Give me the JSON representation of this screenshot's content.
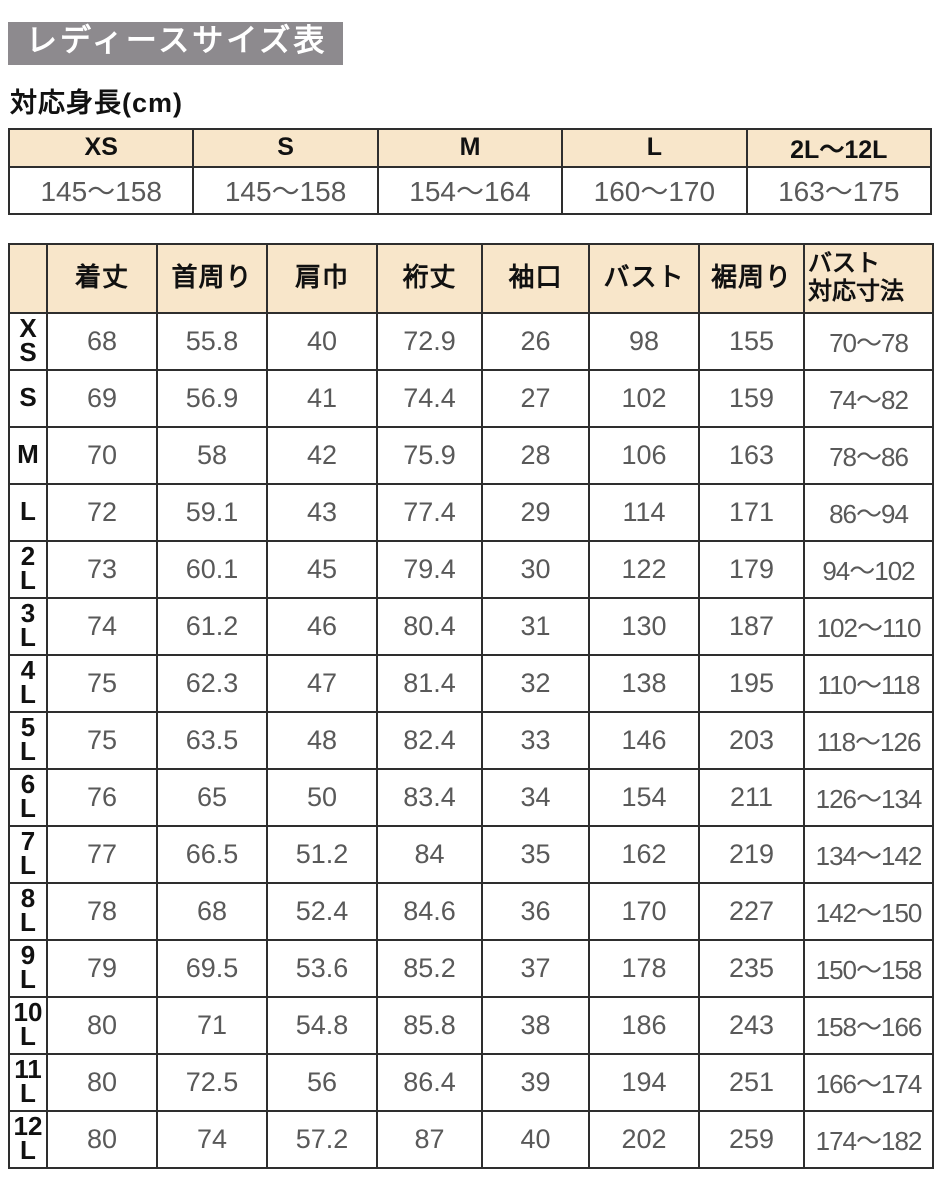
{
  "page_title": "レディースサイズ表",
  "height_section_label": "対応身長(cm)",
  "chart_data": [
    {
      "type": "table",
      "name": "height-range-table",
      "columns": [
        "XS",
        "S",
        "M",
        "L",
        "2L〜12L"
      ],
      "rows": [
        [
          "145〜158",
          "145〜158",
          "154〜164",
          "160〜170",
          "163〜175"
        ]
      ]
    },
    {
      "type": "table",
      "name": "measurements-table",
      "corner_label": "",
      "columns": [
        "着丈",
        "首周り",
        "肩巾",
        "裄丈",
        "袖口",
        "バスト",
        "裾周り",
        "バスト\n対応寸法"
      ],
      "row_headers": [
        "XS",
        "S",
        "M",
        "L",
        "2L",
        "3L",
        "4L",
        "5L",
        "6L",
        "7L",
        "8L",
        "9L",
        "10L",
        "11L",
        "12L"
      ],
      "rows": [
        [
          "68",
          "55.8",
          "40",
          "72.9",
          "26",
          "98",
          "155",
          "70〜78"
        ],
        [
          "69",
          "56.9",
          "41",
          "74.4",
          "27",
          "102",
          "159",
          "74〜82"
        ],
        [
          "70",
          "58",
          "42",
          "75.9",
          "28",
          "106",
          "163",
          "78〜86"
        ],
        [
          "72",
          "59.1",
          "43",
          "77.4",
          "29",
          "114",
          "171",
          "86〜94"
        ],
        [
          "73",
          "60.1",
          "45",
          "79.4",
          "30",
          "122",
          "179",
          "94〜102"
        ],
        [
          "74",
          "61.2",
          "46",
          "80.4",
          "31",
          "130",
          "187",
          "102〜110"
        ],
        [
          "75",
          "62.3",
          "47",
          "81.4",
          "32",
          "138",
          "195",
          "110〜118"
        ],
        [
          "75",
          "63.5",
          "48",
          "82.4",
          "33",
          "146",
          "203",
          "118〜126"
        ],
        [
          "76",
          "65",
          "50",
          "83.4",
          "34",
          "154",
          "211",
          "126〜134"
        ],
        [
          "77",
          "66.5",
          "51.2",
          "84",
          "35",
          "162",
          "219",
          "134〜142"
        ],
        [
          "78",
          "68",
          "52.4",
          "84.6",
          "36",
          "170",
          "227",
          "142〜150"
        ],
        [
          "79",
          "69.5",
          "53.6",
          "85.2",
          "37",
          "178",
          "235",
          "150〜158"
        ],
        [
          "80",
          "71",
          "54.8",
          "85.8",
          "38",
          "186",
          "243",
          "158〜166"
        ],
        [
          "80",
          "72.5",
          "56",
          "86.4",
          "39",
          "194",
          "251",
          "166〜174"
        ],
        [
          "80",
          "74",
          "57.2",
          "87",
          "40",
          "202",
          "259",
          "174〜182"
        ]
      ]
    }
  ],
  "colors": {
    "title_bg": "#8d8a8e",
    "title_text": "#ffffff",
    "header_bg": "#f8e6ca",
    "border": "#2e2e2e",
    "value_text": "#595959",
    "heading_text": "#111111"
  }
}
